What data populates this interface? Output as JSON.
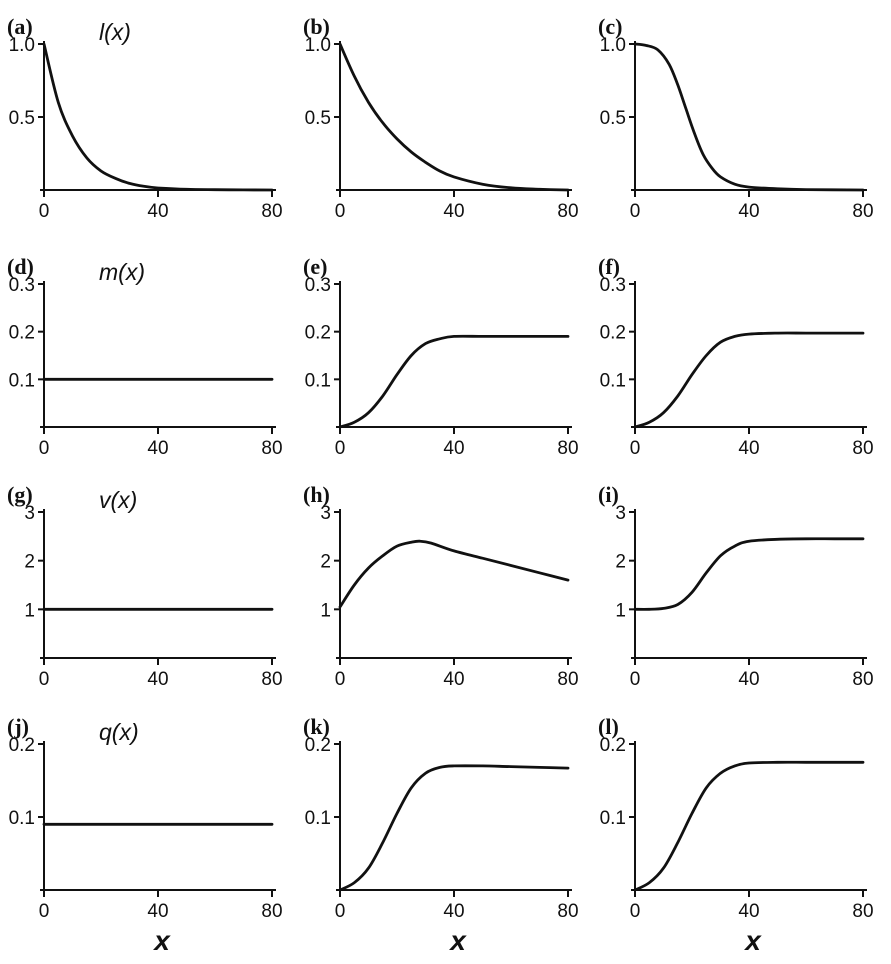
{
  "chart_data": [
    {
      "panel": "(a)",
      "function_label": "l(x)",
      "type": "line",
      "xlim": [
        0,
        80
      ],
      "ylim": [
        0,
        1.0
      ],
      "xticks": [
        "0",
        "40",
        "80"
      ],
      "yticks": [
        {
          "v": 0.5,
          "t": "0.5"
        },
        {
          "v": 1.0,
          "t": "1.0"
        }
      ],
      "x": [
        0,
        5,
        10,
        15,
        20,
        25,
        30,
        35,
        40,
        50,
        60,
        70,
        80
      ],
      "y": [
        1.0,
        0.6,
        0.37,
        0.22,
        0.13,
        0.08,
        0.045,
        0.025,
        0.014,
        0.005,
        0.002,
        0.001,
        0.0
      ]
    },
    {
      "panel": "(b)",
      "type": "line",
      "xlim": [
        0,
        80
      ],
      "ylim": [
        0,
        1.0
      ],
      "xticks": [
        "0",
        "40",
        "80"
      ],
      "yticks": [
        {
          "v": 0.5,
          "t": "0.5"
        },
        {
          "v": 1.0,
          "t": "1.0"
        }
      ],
      "x": [
        0,
        5,
        10,
        15,
        20,
        25,
        30,
        35,
        40,
        50,
        60,
        70,
        80
      ],
      "y": [
        1.0,
        0.78,
        0.6,
        0.46,
        0.35,
        0.26,
        0.19,
        0.13,
        0.09,
        0.04,
        0.015,
        0.005,
        0.0
      ]
    },
    {
      "panel": "(c)",
      "type": "line",
      "xlim": [
        0,
        80
      ],
      "ylim": [
        0,
        1.0
      ],
      "xticks": [
        "0",
        "40",
        "80"
      ],
      "yticks": [
        {
          "v": 0.5,
          "t": "0.5"
        },
        {
          "v": 1.0,
          "t": "1.0"
        }
      ],
      "x": [
        0,
        4,
        8,
        12,
        15,
        18,
        21,
        24,
        27,
        30,
        35,
        40,
        50,
        60,
        80
      ],
      "y": [
        1.0,
        0.99,
        0.96,
        0.86,
        0.72,
        0.55,
        0.38,
        0.24,
        0.15,
        0.09,
        0.04,
        0.02,
        0.008,
        0.003,
        0.0
      ]
    },
    {
      "panel": "(d)",
      "function_label": "m(x)",
      "type": "line",
      "xlim": [
        0,
        80
      ],
      "ylim": [
        0,
        0.3
      ],
      "xticks": [
        "0",
        "40",
        "80"
      ],
      "yticks": [
        {
          "v": 0.1,
          "t": "0.1"
        },
        {
          "v": 0.2,
          "t": "0.2"
        },
        {
          "v": 0.3,
          "t": "0.3"
        }
      ],
      "x": [
        0,
        80
      ],
      "y": [
        0.1,
        0.1
      ]
    },
    {
      "panel": "(e)",
      "type": "line",
      "xlim": [
        0,
        80
      ],
      "ylim": [
        0,
        0.3
      ],
      "xticks": [
        "0",
        "40",
        "80"
      ],
      "yticks": [
        {
          "v": 0.1,
          "t": "0.1"
        },
        {
          "v": 0.2,
          "t": "0.2"
        },
        {
          "v": 0.3,
          "t": "0.3"
        }
      ],
      "x": [
        0,
        5,
        10,
        15,
        20,
        25,
        30,
        35,
        40,
        50,
        60,
        70,
        80
      ],
      "y": [
        0.0,
        0.01,
        0.03,
        0.065,
        0.11,
        0.15,
        0.175,
        0.185,
        0.19,
        0.19,
        0.19,
        0.19,
        0.19
      ]
    },
    {
      "panel": "(f)",
      "type": "line",
      "xlim": [
        0,
        80
      ],
      "ylim": [
        0,
        0.3
      ],
      "xticks": [
        "0",
        "40",
        "80"
      ],
      "yticks": [
        {
          "v": 0.1,
          "t": "0.1"
        },
        {
          "v": 0.2,
          "t": "0.2"
        },
        {
          "v": 0.3,
          "t": "0.3"
        }
      ],
      "x": [
        0,
        5,
        10,
        15,
        20,
        25,
        30,
        35,
        40,
        50,
        60,
        70,
        80
      ],
      "y": [
        0.0,
        0.01,
        0.03,
        0.065,
        0.11,
        0.15,
        0.178,
        0.19,
        0.195,
        0.197,
        0.197,
        0.197,
        0.197
      ]
    },
    {
      "panel": "(g)",
      "function_label": "v(x)",
      "type": "line",
      "xlim": [
        0,
        80
      ],
      "ylim": [
        0,
        3
      ],
      "xticks": [
        "0",
        "40",
        "80"
      ],
      "yticks": [
        {
          "v": 1,
          "t": "1"
        },
        {
          "v": 2,
          "t": "2"
        },
        {
          "v": 3,
          "t": "3"
        }
      ],
      "x": [
        0,
        80
      ],
      "y": [
        1.0,
        1.0
      ]
    },
    {
      "panel": "(h)",
      "type": "line",
      "xlim": [
        0,
        80
      ],
      "ylim": [
        0,
        3
      ],
      "xticks": [
        "0",
        "40",
        "80"
      ],
      "yticks": [
        {
          "v": 1,
          "t": "1"
        },
        {
          "v": 2,
          "t": "2"
        },
        {
          "v": 3,
          "t": "3"
        }
      ],
      "x": [
        0,
        5,
        10,
        15,
        20,
        25,
        28,
        32,
        40,
        50,
        60,
        70,
        80
      ],
      "y": [
        1.05,
        1.5,
        1.85,
        2.1,
        2.3,
        2.38,
        2.4,
        2.36,
        2.2,
        2.05,
        1.9,
        1.75,
        1.6
      ]
    },
    {
      "panel": "(i)",
      "type": "line",
      "xlim": [
        0,
        80
      ],
      "ylim": [
        0,
        3
      ],
      "xticks": [
        "0",
        "40",
        "80"
      ],
      "yticks": [
        {
          "v": 1,
          "t": "1"
        },
        {
          "v": 2,
          "t": "2"
        },
        {
          "v": 3,
          "t": "3"
        }
      ],
      "x": [
        0,
        5,
        10,
        15,
        20,
        25,
        30,
        35,
        40,
        50,
        60,
        70,
        80
      ],
      "y": [
        1.0,
        1.0,
        1.02,
        1.1,
        1.35,
        1.75,
        2.1,
        2.3,
        2.4,
        2.44,
        2.45,
        2.45,
        2.45
      ]
    },
    {
      "panel": "(j)",
      "function_label": "q(x)",
      "type": "line",
      "xlim": [
        0,
        80
      ],
      "ylim": [
        0,
        0.2
      ],
      "xticks": [
        "0",
        "40",
        "80"
      ],
      "yticks": [
        {
          "v": 0.1,
          "t": "0.1"
        },
        {
          "v": 0.2,
          "t": "0.2"
        }
      ],
      "x": [
        0,
        80
      ],
      "y": [
        0.09,
        0.09
      ]
    },
    {
      "panel": "(k)",
      "type": "line",
      "xlim": [
        0,
        80
      ],
      "ylim": [
        0,
        0.2
      ],
      "xticks": [
        "0",
        "40",
        "80"
      ],
      "yticks": [
        {
          "v": 0.1,
          "t": "0.1"
        },
        {
          "v": 0.2,
          "t": "0.2"
        }
      ],
      "x": [
        0,
        5,
        10,
        15,
        20,
        25,
        30,
        35,
        40,
        50,
        60,
        70,
        80
      ],
      "y": [
        0.0,
        0.01,
        0.03,
        0.065,
        0.105,
        0.14,
        0.16,
        0.168,
        0.17,
        0.17,
        0.169,
        0.168,
        0.167
      ]
    },
    {
      "panel": "(l)",
      "type": "line",
      "xlim": [
        0,
        80
      ],
      "ylim": [
        0,
        0.2
      ],
      "xticks": [
        "0",
        "40",
        "80"
      ],
      "yticks": [
        {
          "v": 0.1,
          "t": "0.1"
        },
        {
          "v": 0.2,
          "t": "0.2"
        }
      ],
      "x": [
        0,
        5,
        10,
        15,
        20,
        25,
        30,
        35,
        40,
        50,
        60,
        70,
        80
      ],
      "y": [
        0.0,
        0.01,
        0.03,
        0.065,
        0.105,
        0.14,
        0.16,
        0.17,
        0.174,
        0.175,
        0.175,
        0.175,
        0.175
      ]
    }
  ],
  "x_axis_label": "x"
}
